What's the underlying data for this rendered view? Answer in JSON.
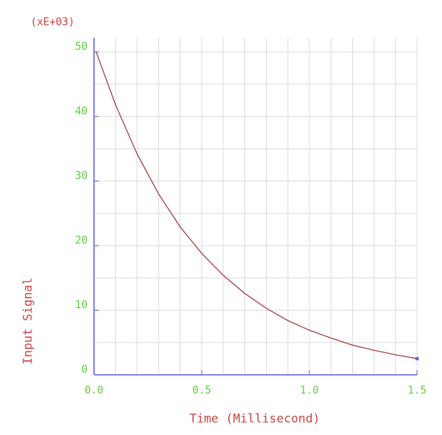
{
  "chart_data": {
    "type": "line",
    "multiplier_label": "(xE+03)",
    "xlabel": "Time (Millisecond)",
    "ylabel": "Input Signal",
    "x": [
      0.01,
      0.1,
      0.2,
      0.3,
      0.4,
      0.5,
      0.6,
      0.7,
      0.8,
      0.9,
      1.0,
      1.1,
      1.2,
      1.3,
      1.4,
      1.5
    ],
    "series": [
      {
        "name": "Input Signal",
        "color": "#a04040",
        "values": [
          50,
          41.8,
          34.2,
          28.0,
          22.9,
          18.8,
          15.4,
          12.6,
          10.3,
          8.4,
          6.9,
          5.7,
          4.6,
          3.8,
          3.1,
          2.5
        ]
      }
    ],
    "xlim": [
      0,
      1.5
    ],
    "ylim": [
      0,
      52.2
    ],
    "xticks": [
      {
        "value": 0,
        "label": "0.0"
      },
      {
        "value": 0.5,
        "label": "0.5"
      },
      {
        "value": 1,
        "label": "1.0"
      },
      {
        "value": 1.5,
        "label": "1.5"
      }
    ],
    "yticks": [
      0,
      10,
      20,
      30,
      40,
      50
    ],
    "minor_xticks": [
      0.1,
      0.2,
      0.3,
      0.4,
      0.6,
      0.7,
      0.8,
      0.9,
      1.1,
      1.2,
      1.3,
      1.4
    ],
    "minor_yticks": [
      5,
      15,
      25,
      35,
      45
    ],
    "grid": true,
    "axis_color": "#6666dd",
    "tick_label_color": "#66cc44",
    "title_color": "#cc4444",
    "grid_color": "#dddddd"
  }
}
